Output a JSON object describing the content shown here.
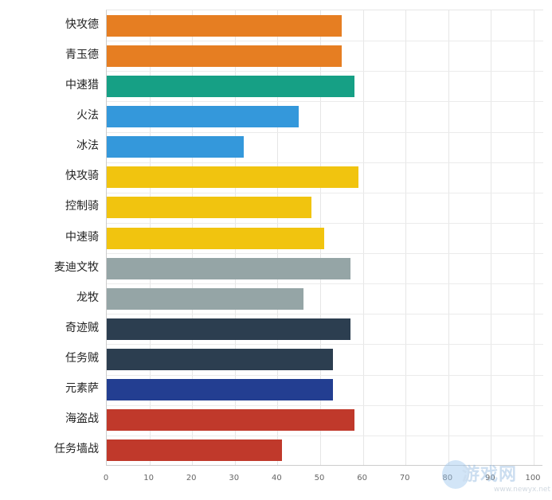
{
  "chart_data": {
    "type": "bar",
    "orientation": "horizontal",
    "title": "",
    "xlabel": "",
    "ylabel": "",
    "xlim": [
      0,
      100
    ],
    "x_ticks": [
      0,
      10,
      20,
      30,
      40,
      50,
      60,
      70,
      80,
      90,
      100
    ],
    "grid": true,
    "legend": null,
    "categories": [
      "快攻德",
      "青玉德",
      "中速猎",
      "火法",
      "冰法",
      "快攻骑",
      "控制骑",
      "中速骑",
      "麦迪文牧",
      "龙牧",
      "奇迹贼",
      "任务贼",
      "元素萨",
      "海盗战",
      "任务墙战"
    ],
    "values": [
      55,
      55,
      58,
      45,
      32,
      59,
      48,
      51,
      57,
      46,
      57,
      53,
      53,
      58,
      41
    ],
    "colors": [
      "#e67e22",
      "#e67e22",
      "#16a085",
      "#3498db",
      "#3498db",
      "#f1c40f",
      "#f1c40f",
      "#f1c40f",
      "#95a5a6",
      "#95a5a6",
      "#2c3e50",
      "#2c3e50",
      "#233e91",
      "#c0392b",
      "#c0392b"
    ]
  },
  "watermark": {
    "text": "游戏网",
    "url": "www.newyx.net"
  }
}
